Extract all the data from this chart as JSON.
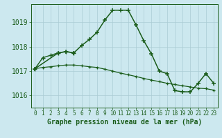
{
  "title": "Graphe pression niveau de la mer (hPa)",
  "hours": [
    0,
    1,
    2,
    3,
    4,
    5,
    6,
    7,
    8,
    9,
    10,
    11,
    12,
    13,
    14,
    15,
    16,
    17,
    18,
    19,
    20,
    21,
    22,
    23
  ],
  "ylim": [
    1015.5,
    1019.75
  ],
  "yticks": [
    1016,
    1017,
    1018,
    1019
  ],
  "bg_color": "#cce8ef",
  "grid_color": "#aaccd4",
  "line_color": "#1a5c1a",
  "line_main": [
    1017.1,
    null,
    null,
    1017.75,
    1017.8,
    1017.75,
    1018.05,
    1018.3,
    1018.6,
    1019.1,
    1019.5,
    1019.5,
    1019.5,
    1018.9,
    1018.25,
    1017.7,
    1017.0,
    1016.9,
    1016.2,
    1016.15,
    1016.15,
    1016.5,
    1016.9,
    1016.5
  ],
  "line_early": [
    1017.1,
    1017.55,
    1017.65,
    1017.75,
    1017.8,
    1017.75,
    null,
    null,
    null,
    null,
    null,
    null,
    null,
    null,
    null,
    null,
    null,
    null,
    null,
    null,
    null,
    null,
    null,
    null
  ],
  "line_flat": [
    1017.1,
    1017.15,
    1017.18,
    1017.22,
    1017.25,
    1017.25,
    1017.22,
    1017.18,
    1017.15,
    1017.08,
    1017.0,
    1016.92,
    1016.85,
    1016.78,
    1016.7,
    1016.63,
    1016.57,
    1016.5,
    1016.45,
    1016.4,
    1016.35,
    1016.3,
    1016.28,
    1016.22
  ]
}
